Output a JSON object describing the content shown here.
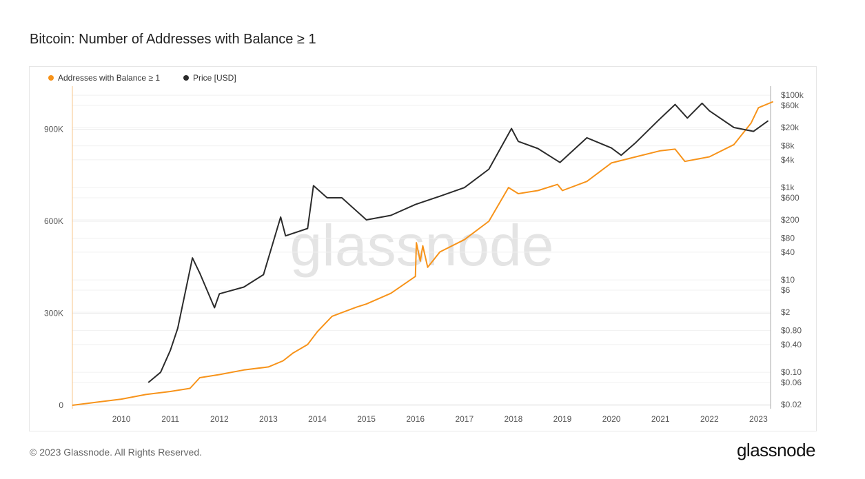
{
  "title": "Bitcoin: Number of Addresses with Balance ≥ 1",
  "footer": "© 2023 Glassnode. All Rights Reserved.",
  "logo": "glassnode",
  "watermark": "glassnode",
  "chart_data": {
    "type": "line",
    "title": "Bitcoin: Number of Addresses with Balance ≥ 1",
    "legend_position": "top-left",
    "grid": true,
    "x_ticks": [
      "2010",
      "2011",
      "2012",
      "2013",
      "2014",
      "2015",
      "2016",
      "2017",
      "2018",
      "2019",
      "2020",
      "2021",
      "2022",
      "2023"
    ],
    "y_left": {
      "ticks": [
        "0",
        "300K",
        "600K",
        "900K"
      ],
      "range": [
        0,
        1050000
      ]
    },
    "y_right": {
      "scale": "log",
      "ticks": [
        "$100k",
        "$60k",
        "$20k",
        "$8k",
        "$4k",
        "$1k",
        "$600",
        "$200",
        "$80",
        "$40",
        "$10",
        "$6",
        "$2",
        "$0.80",
        "$0.40",
        "$0.10",
        "$0.06",
        "$0.02"
      ],
      "tick_values": [
        100000,
        60000,
        20000,
        8000,
        4000,
        1000,
        600,
        200,
        80,
        40,
        10,
        6,
        2,
        0.8,
        0.4,
        0.1,
        0.06,
        0.02
      ],
      "range": [
        0.02,
        100000
      ]
    },
    "series": [
      {
        "name": "Addresses with Balance ≥ 1",
        "color": "#f7931a",
        "axis": "left",
        "x": [
          2009.0,
          2009.5,
          2010.0,
          2010.5,
          2011.0,
          2011.4,
          2011.6,
          2012.0,
          2012.5,
          2013.0,
          2013.3,
          2013.5,
          2013.8,
          2014.0,
          2014.3,
          2014.8,
          2015.0,
          2015.5,
          2016.0,
          2016.02,
          2016.1,
          2016.15,
          2016.25,
          2016.5,
          2017.0,
          2017.5,
          2017.9,
          2018.1,
          2018.5,
          2018.9,
          2019.0,
          2019.5,
          2020.0,
          2020.5,
          2021.0,
          2021.3,
          2021.5,
          2022.0,
          2022.5,
          2022.75,
          2022.85,
          2023.0,
          2023.3
        ],
        "y": [
          0,
          10000,
          20000,
          35000,
          45000,
          55000,
          90000,
          100000,
          115000,
          125000,
          145000,
          170000,
          198000,
          240000,
          290000,
          320000,
          330000,
          365000,
          420000,
          530000,
          470000,
          520000,
          450000,
          500000,
          540000,
          600000,
          710000,
          690000,
          700000,
          720000,
          700000,
          730000,
          790000,
          810000,
          830000,
          835000,
          795000,
          810000,
          850000,
          900000,
          920000,
          970000,
          990000
        ]
      },
      {
        "name": "Price [USD]",
        "color": "#2b2b2b",
        "axis": "right",
        "x": [
          2010.55,
          2010.8,
          2011.0,
          2011.15,
          2011.45,
          2011.6,
          2011.9,
          2012.0,
          2012.5,
          2012.9,
          2013.25,
          2013.35,
          2013.8,
          2013.92,
          2014.2,
          2014.5,
          2015.0,
          2015.5,
          2016.0,
          2016.5,
          2017.0,
          2017.5,
          2017.96,
          2018.1,
          2018.5,
          2018.95,
          2019.5,
          2020.0,
          2020.2,
          2020.5,
          2020.95,
          2021.3,
          2021.55,
          2021.85,
          2022.0,
          2022.5,
          2022.9,
          2023.2
        ],
        "y": [
          0.06,
          0.1,
          0.3,
          0.9,
          30,
          14,
          2.5,
          5,
          7,
          13,
          230,
          90,
          130,
          1100,
          600,
          600,
          200,
          250,
          430,
          650,
          1000,
          2500,
          19000,
          10000,
          7000,
          3500,
          12000,
          7200,
          5000,
          9500,
          28000,
          63000,
          32000,
          67000,
          46000,
          20000,
          16500,
          28000
        ]
      }
    ]
  }
}
